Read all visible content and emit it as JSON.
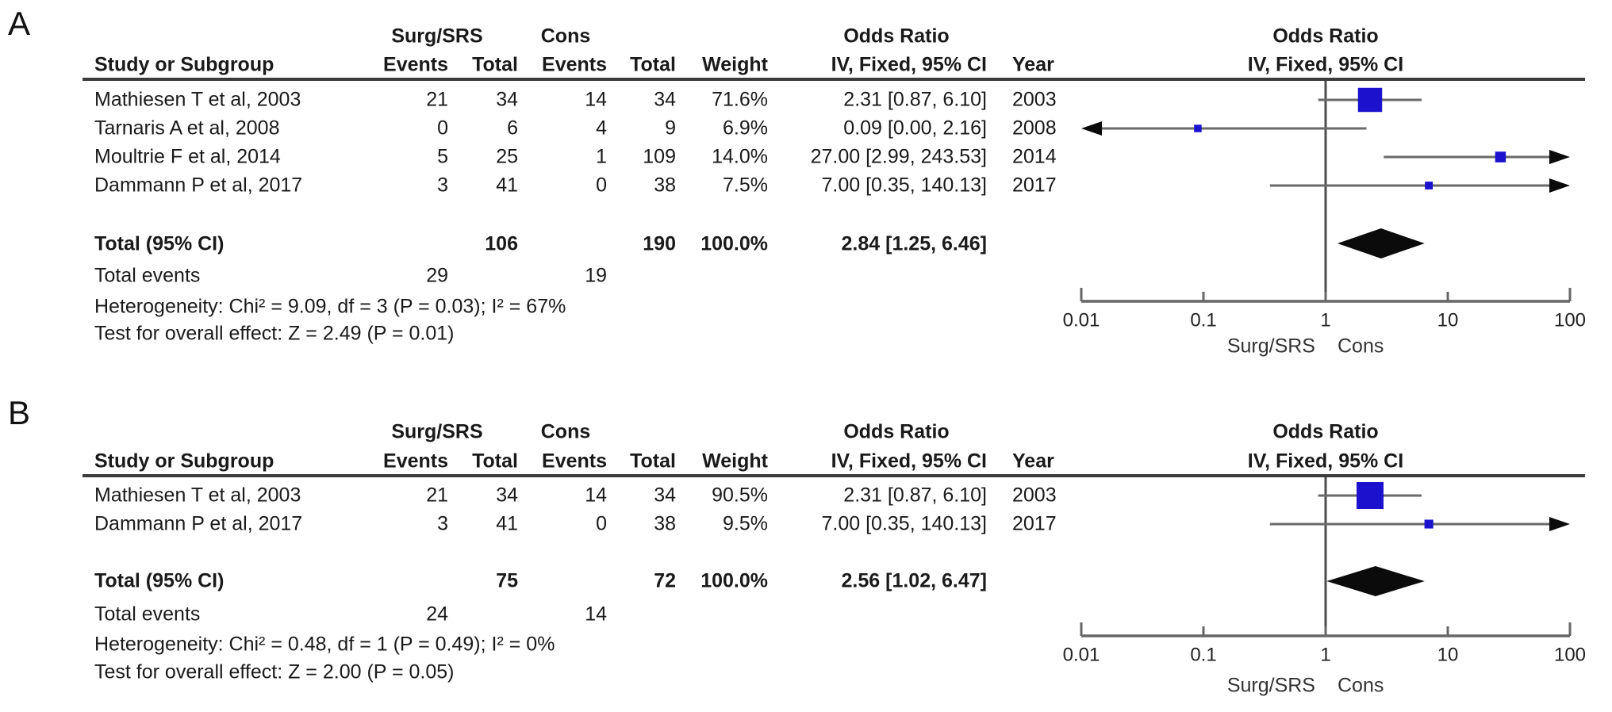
{
  "figure_title": "",
  "colors": {
    "square": "#1c12cd",
    "ci_line": "#6a6a6a",
    "axis_line": "#666666",
    "vertical_line": "#4d4d4d",
    "diamond": "#0b0b0b",
    "rule": "#3b3b3b",
    "text": "#1a1a1a"
  },
  "chart_data": [
    {
      "panel": "A",
      "type": "scatter",
      "subtype": "forest_plot",
      "effect_measure": "Odds Ratio",
      "method": "IV, Fixed, 95% CI",
      "columns": {
        "study": "Study or Subgroup",
        "group1": "Surg/SRS",
        "group2": "Cons",
        "events": "Events",
        "total": "Total",
        "weight": "Weight",
        "or_header": "Odds Ratio",
        "or_subheader": "IV, Fixed, 95% CI",
        "year": "Year"
      },
      "rows": [
        {
          "study": "Mathiesen T et al, 2003",
          "events1": "21",
          "total1": "34",
          "events2": "14",
          "total2": "34",
          "weight": "71.6%",
          "weight_value": 71.6,
          "or_ci": "2.31 [0.87, 6.10]",
          "year": "2003",
          "or": 2.31,
          "ci_low": 0.87,
          "ci_high": 6.1
        },
        {
          "study": "Tarnaris A et al, 2008",
          "events1": "0",
          "total1": "6",
          "events2": "4",
          "total2": "9",
          "weight": "6.9%",
          "weight_value": 6.9,
          "or_ci": "0.09 [0.00, 2.16]",
          "year": "2008",
          "or": 0.09,
          "ci_low": 0.0,
          "ci_high": 2.16
        },
        {
          "study": "Moultrie F et al, 2014",
          "events1": "5",
          "total1": "25",
          "events2": "1",
          "total2": "109",
          "weight": "14.0%",
          "weight_value": 14.0,
          "or_ci": "27.00 [2.99, 243.53]",
          "year": "2014",
          "or": 27.0,
          "ci_low": 2.99,
          "ci_high": 243.53
        },
        {
          "study": "Dammann P et al, 2017",
          "events1": "3",
          "total1": "41",
          "events2": "0",
          "total2": "38",
          "weight": "7.5%",
          "weight_value": 7.5,
          "or_ci": "7.00 [0.35, 140.13]",
          "year": "2017",
          "or": 7.0,
          "ci_low": 0.35,
          "ci_high": 140.13
        }
      ],
      "total": {
        "label": "Total (95% CI)",
        "total1": "106",
        "total2": "190",
        "weight": "100.0%",
        "or_ci": "2.84 [1.25, 6.46]",
        "or": 2.84,
        "ci_low": 1.25,
        "ci_high": 6.46
      },
      "total_events": {
        "label": "Total events",
        "events1": "29",
        "events2": "19"
      },
      "heterogeneity": "Heterogeneity: Chi² = 9.09, df = 3 (P = 0.03); I² = 67%",
      "overall_effect": "Test for overall effect: Z = 2.49 (P = 0.01)",
      "axis": {
        "scale": "log",
        "min": 0.01,
        "max": 100,
        "ticks": [
          0.01,
          0.1,
          1,
          10,
          100
        ],
        "tick_labels": [
          "0.01",
          "0.1",
          "1",
          "10",
          "100"
        ],
        "favours_left": "Surg/SRS",
        "favours_right": "Cons"
      }
    },
    {
      "panel": "B",
      "type": "scatter",
      "subtype": "forest_plot",
      "effect_measure": "Odds Ratio",
      "method": "IV, Fixed, 95% CI",
      "columns": {
        "study": "Study or Subgroup",
        "group1": "Surg/SRS",
        "group2": "Cons",
        "events": "Events",
        "total": "Total",
        "weight": "Weight",
        "or_header": "Odds Ratio",
        "or_subheader": "IV, Fixed, 95% CI",
        "year": "Year"
      },
      "rows": [
        {
          "study": "Mathiesen T et al, 2003",
          "events1": "21",
          "total1": "34",
          "events2": "14",
          "total2": "34",
          "weight": "90.5%",
          "weight_value": 90.5,
          "or_ci": "2.31 [0.87, 6.10]",
          "year": "2003",
          "or": 2.31,
          "ci_low": 0.87,
          "ci_high": 6.1
        },
        {
          "study": "Dammann P et al, 2017",
          "events1": "3",
          "total1": "41",
          "events2": "0",
          "total2": "38",
          "weight": "9.5%",
          "weight_value": 9.5,
          "or_ci": "7.00 [0.35, 140.13]",
          "year": "2017",
          "or": 7.0,
          "ci_low": 0.35,
          "ci_high": 140.13
        }
      ],
      "total": {
        "label": "Total (95% CI)",
        "total1": "75",
        "total2": "72",
        "weight": "100.0%",
        "or_ci": "2.56 [1.02, 6.47]",
        "or": 2.56,
        "ci_low": 1.02,
        "ci_high": 6.47
      },
      "total_events": {
        "label": "Total events",
        "events1": "24",
        "events2": "14"
      },
      "heterogeneity": "Heterogeneity: Chi² = 0.48, df = 1 (P = 0.49); I² = 0%",
      "overall_effect": "Test for overall effect: Z = 2.00 (P = 0.05)",
      "axis": {
        "scale": "log",
        "min": 0.01,
        "max": 100,
        "ticks": [
          0.01,
          0.1,
          1,
          10,
          100
        ],
        "tick_labels": [
          "0.01",
          "0.1",
          "1",
          "10",
          "100"
        ],
        "favours_left": "Surg/SRS",
        "favours_right": "Cons"
      }
    }
  ]
}
